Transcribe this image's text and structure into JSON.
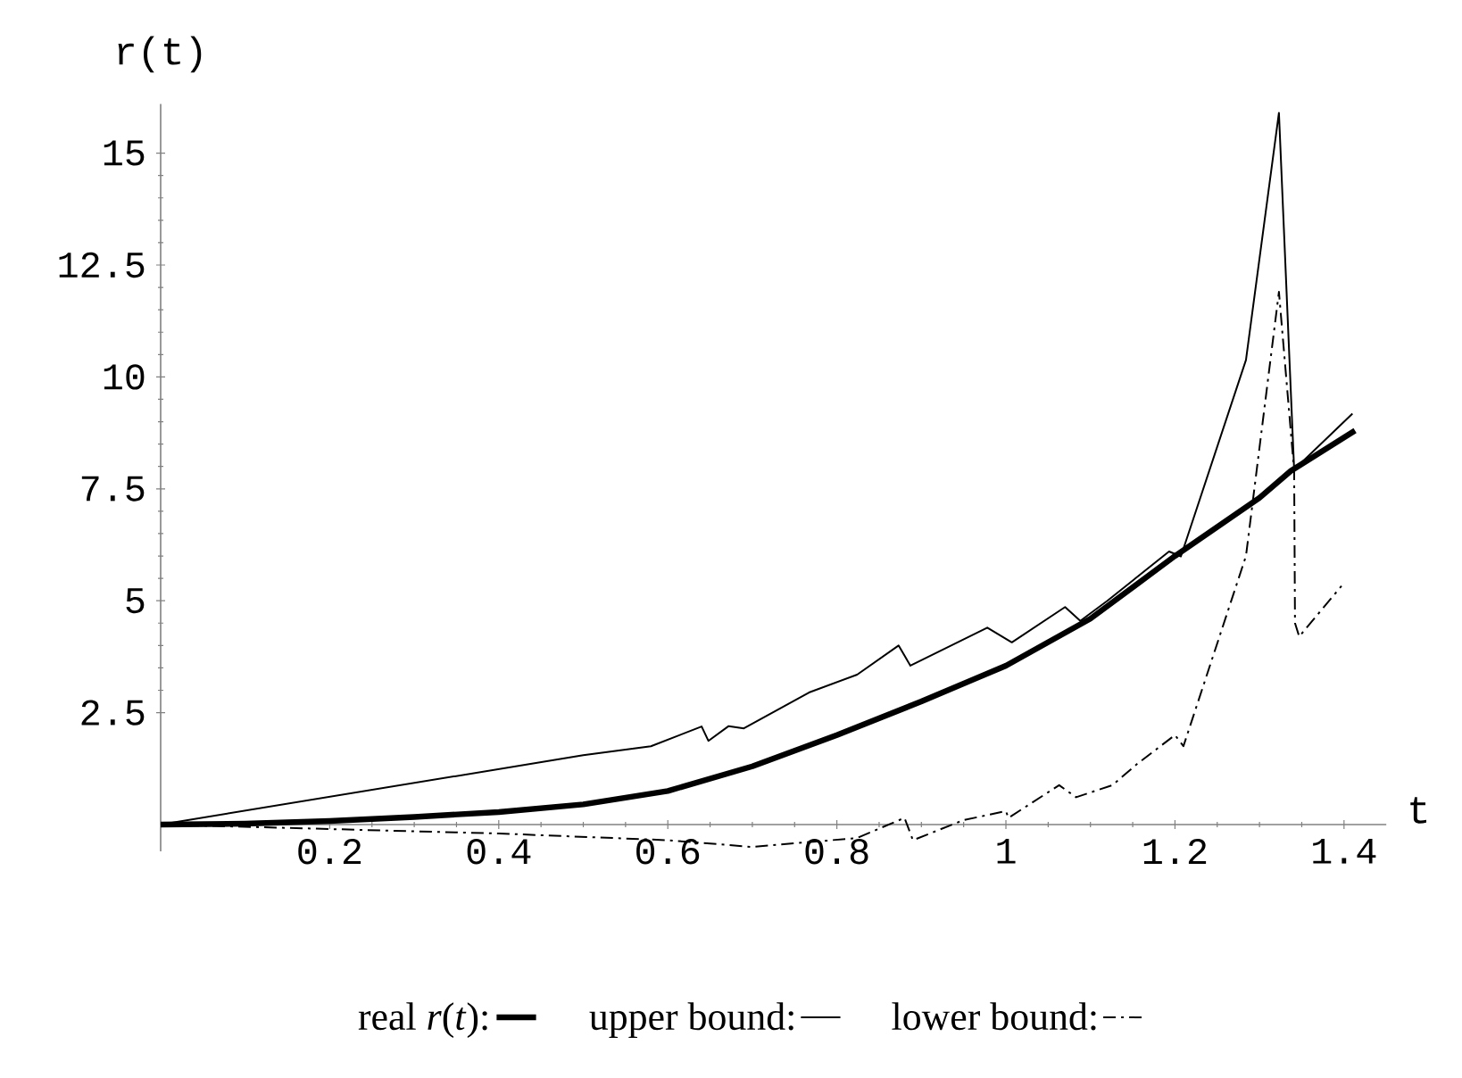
{
  "chart_data": {
    "type": "line",
    "xlabel": "t",
    "ylabel": "r(t)",
    "xlim": [
      0,
      1.45
    ],
    "ylim": [
      -0.6,
      16.1
    ],
    "xticks": [
      0.2,
      0.4,
      0.6,
      0.8,
      1,
      1.2,
      1.4
    ],
    "yticks": [
      2.5,
      5,
      7.5,
      10,
      12.5,
      15
    ],
    "grid": false,
    "legend": "bottom",
    "marker": "none",
    "series": [
      {
        "name": "real *r*(*t*):",
        "color": "#000000",
        "line_style": "solid",
        "x": [
          0,
          0.1,
          0.2,
          0.3,
          0.4,
          0.5,
          0.6,
          0.7,
          0.8,
          0.9,
          1.0,
          1.1,
          1.2,
          1.3,
          1.337,
          1.413
        ],
        "values": [
          0,
          0.02,
          0.08,
          0.17,
          0.28,
          0.45,
          0.75,
          1.3,
          2.0,
          2.75,
          3.55,
          4.6,
          6.0,
          7.3,
          7.9,
          8.8
        ]
      },
      {
        "name": "upper bound:",
        "color": "#000000",
        "line_style": "solid",
        "x": [
          0,
          0.5,
          0.58,
          0.64,
          0.648,
          0.672,
          0.69,
          0.767,
          0.824,
          0.873,
          0.887,
          0.978,
          1.007,
          1.07,
          1.088,
          1.12,
          1.193,
          1.207,
          1.284,
          1.323,
          1.341,
          1.41
        ],
        "values": [
          0,
          1.55,
          1.75,
          2.19,
          1.87,
          2.2,
          2.15,
          2.95,
          3.35,
          4.0,
          3.55,
          4.4,
          4.07,
          4.86,
          4.55,
          5.0,
          6.1,
          5.99,
          10.38,
          15.9,
          7.93,
          9.18
        ]
      },
      {
        "name": "lower bound:",
        "color": "#000000",
        "line_style": "dashed",
        "x": [
          0,
          0.2,
          0.4,
          0.6,
          0.7,
          0.824,
          0.88,
          0.89,
          0.95,
          1.0,
          1.003,
          1.063,
          1.083,
          1.126,
          1.155,
          1.2,
          1.21,
          1.284,
          1.323,
          1.341,
          1.342,
          1.347,
          1.397
        ],
        "values": [
          0,
          -0.1,
          -0.2,
          -0.35,
          -0.5,
          -0.3,
          0.15,
          -0.35,
          0.1,
          0.3,
          0.15,
          0.88,
          0.61,
          0.88,
          1.35,
          2.0,
          1.75,
          6.0,
          11.9,
          7.9,
          4.5,
          4.2,
          5.33
        ]
      }
    ]
  }
}
